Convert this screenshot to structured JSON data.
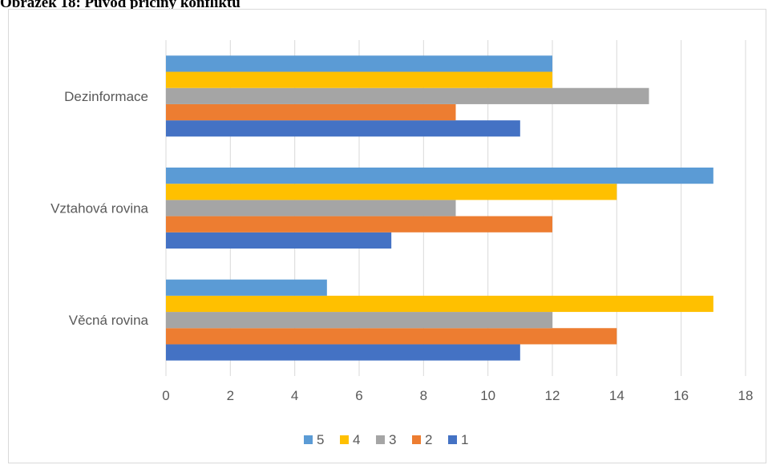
{
  "caption": "Obrázek 18: Původ příčiny konfliktu",
  "chart_data": {
    "type": "bar",
    "orientation": "horizontal",
    "categories": [
      "Věcná rovina",
      "Vztahová rovina",
      "Dezinformace"
    ],
    "series": [
      {
        "name": "1",
        "color": "#4472C4",
        "values": [
          11,
          7,
          11
        ]
      },
      {
        "name": "2",
        "color": "#ED7D31",
        "values": [
          14,
          12,
          9
        ]
      },
      {
        "name": "3",
        "color": "#A5A5A5",
        "values": [
          12,
          9,
          15
        ]
      },
      {
        "name": "4",
        "color": "#FFC000",
        "values": [
          17,
          14,
          12
        ]
      },
      {
        "name": "5",
        "color": "#5B9BD5",
        "values": [
          5,
          17,
          12
        ]
      }
    ],
    "xlim": [
      0,
      18
    ],
    "xticks": [
      0,
      2,
      4,
      6,
      8,
      10,
      12,
      14,
      16,
      18
    ],
    "xlabel": "",
    "ylabel": "",
    "grid": "vertical",
    "legend_position": "bottom",
    "legend_order": [
      "5",
      "4",
      "3",
      "2",
      "1"
    ]
  }
}
